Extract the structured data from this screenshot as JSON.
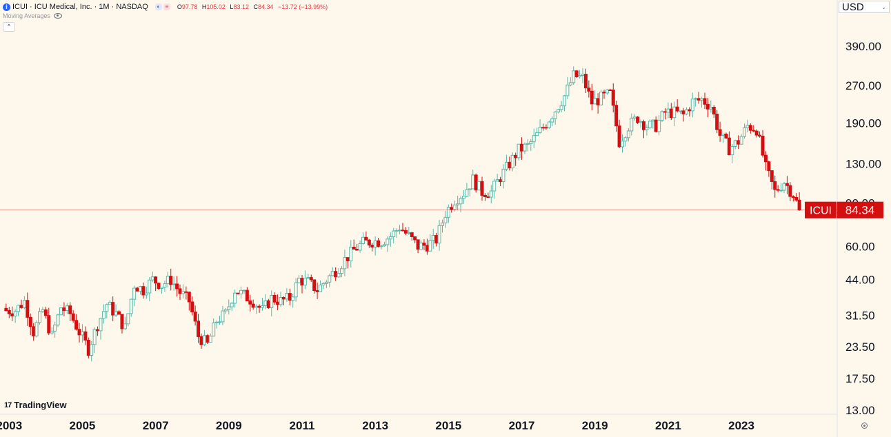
{
  "header": {
    "info_icon": "i",
    "title": "ICUI · ICU Medical, Inc. · 1M · NASDAQ",
    "pill_icons": [
      "half-circle-icon",
      "lines-icon"
    ],
    "ohlc": {
      "o_label": "O",
      "o_value": "97.78",
      "h_label": "H",
      "h_value": "105.02",
      "l_label": "L",
      "l_value": "83.12",
      "c_label": "C",
      "c_value": "84.34",
      "change": "−13.72 (−13.99%)"
    },
    "indicator": "Moving Averages",
    "collapse": "^"
  },
  "currency": {
    "value": "USD",
    "chevron": "⌄"
  },
  "logo": {
    "mark": "17",
    "text": "TradingView"
  },
  "colors": {
    "up": "#5ab8ac",
    "down": "#d30f10",
    "bg": "#fdf7ec",
    "last": "#d30f10"
  },
  "chart_data": {
    "type": "candlestick",
    "symbol": "ICUI",
    "interval": "1M",
    "y_scale": "log",
    "y_ticks": [
      "390.00",
      "270.00",
      "190.00",
      "130.00",
      "90.00",
      "60.00",
      "44.00",
      "31.50",
      "23.50",
      "17.50",
      "13.00"
    ],
    "x_ticks": [
      "2003",
      "2005",
      "2007",
      "2009",
      "2011",
      "2013",
      "2015",
      "2017",
      "2019",
      "2021",
      "2023"
    ],
    "x_range": [
      "2002-12",
      "2024-08"
    ],
    "last_price": {
      "symbol": "ICUI",
      "value": "84.34"
    },
    "closes": [
      [
        "2002-12",
        33
      ],
      [
        "2003-03",
        33
      ],
      [
        "2003-06",
        36
      ],
      [
        "2003-09",
        27
      ],
      [
        "2003-12",
        33
      ],
      [
        "2004-03",
        26
      ],
      [
        "2004-06",
        34
      ],
      [
        "2004-09",
        32
      ],
      [
        "2004-12",
        27
      ],
      [
        "2005-03",
        23
      ],
      [
        "2005-06",
        29
      ],
      [
        "2005-09",
        35
      ],
      [
        "2005-12",
        32
      ],
      [
        "2006-03",
        28
      ],
      [
        "2006-06",
        42
      ],
      [
        "2006-09",
        40
      ],
      [
        "2006-12",
        44
      ],
      [
        "2007-03",
        42
      ],
      [
        "2007-06",
        44
      ],
      [
        "2007-09",
        39
      ],
      [
        "2007-12",
        36
      ],
      [
        "2008-03",
        26
      ],
      [
        "2008-06",
        24
      ],
      [
        "2008-09",
        30
      ],
      [
        "2008-12",
        32
      ],
      [
        "2009-03",
        40
      ],
      [
        "2009-06",
        38
      ],
      [
        "2009-09",
        36
      ],
      [
        "2009-12",
        33
      ],
      [
        "2010-03",
        37
      ],
      [
        "2010-06",
        36
      ],
      [
        "2010-09",
        37
      ],
      [
        "2010-12",
        44
      ],
      [
        "2011-03",
        43
      ],
      [
        "2011-06",
        40
      ],
      [
        "2011-09",
        44
      ],
      [
        "2011-12",
        48
      ],
      [
        "2012-03",
        53
      ],
      [
        "2012-06",
        58
      ],
      [
        "2012-09",
        62
      ],
      [
        "2012-12",
        63
      ],
      [
        "2013-03",
        63
      ],
      [
        "2013-06",
        66
      ],
      [
        "2013-09",
        72
      ],
      [
        "2013-12",
        66
      ],
      [
        "2014-03",
        60
      ],
      [
        "2014-06",
        61
      ],
      [
        "2014-09",
        64
      ],
      [
        "2014-12",
        82
      ],
      [
        "2015-03",
        93
      ],
      [
        "2015-06",
        99
      ],
      [
        "2015-09",
        112
      ],
      [
        "2015-12",
        100
      ],
      [
        "2016-03",
        100
      ],
      [
        "2016-06",
        115
      ],
      [
        "2016-09",
        130
      ],
      [
        "2016-12",
        148
      ],
      [
        "2017-03",
        153
      ],
      [
        "2017-06",
        170
      ],
      [
        "2017-09",
        190
      ],
      [
        "2017-12",
        215
      ],
      [
        "2018-03",
        245
      ],
      [
        "2018-06",
        295
      ],
      [
        "2018-09",
        290
      ],
      [
        "2018-12",
        230
      ],
      [
        "2019-03",
        240
      ],
      [
        "2019-06",
        250
      ],
      [
        "2019-09",
        160
      ],
      [
        "2019-12",
        185
      ],
      [
        "2020-03",
        200
      ],
      [
        "2020-06",
        185
      ],
      [
        "2020-09",
        185
      ],
      [
        "2020-12",
        210
      ],
      [
        "2021-03",
        210
      ],
      [
        "2021-06",
        205
      ],
      [
        "2021-09",
        232
      ],
      [
        "2021-12",
        237
      ],
      [
        "2022-03",
        223
      ],
      [
        "2022-06",
        170
      ],
      [
        "2022-09",
        150
      ],
      [
        "2022-12",
        160
      ],
      [
        "2023-03",
        185
      ],
      [
        "2023-06",
        180
      ],
      [
        "2023-09",
        125
      ],
      [
        "2023-12",
        100
      ],
      [
        "2024-03",
        110
      ],
      [
        "2024-06",
        97.78
      ],
      [
        "2024-08",
        84.34
      ]
    ]
  }
}
